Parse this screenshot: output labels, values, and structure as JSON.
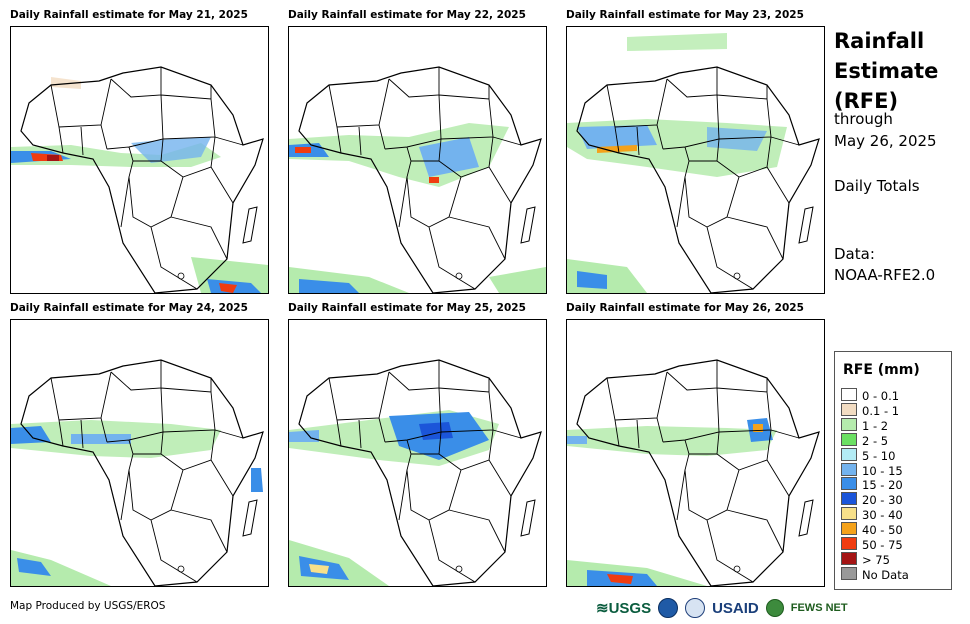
{
  "panels": [
    {
      "title": "Daily Rainfall estimate for May 21, 2025"
    },
    {
      "title": "Daily Rainfall estimate for May 22, 2025"
    },
    {
      "title": "Daily Rainfall estimate for May 23, 2025"
    },
    {
      "title": "Daily Rainfall estimate for May 24, 2025"
    },
    {
      "title": "Daily Rainfall estimate for May 25, 2025"
    },
    {
      "title": "Daily Rainfall estimate for May 26, 2025"
    }
  ],
  "sidebar": {
    "title_line1": "Rainfall",
    "title_line2": "Estimate",
    "title_line3": "(RFE)",
    "through": "through",
    "date": "May 26, 2025",
    "totals": "Daily Totals",
    "data_label": "Data:",
    "data_source": "NOAA-RFE2.0"
  },
  "legend": {
    "title": "RFE (mm)",
    "items": [
      {
        "label": "0 - 0.1",
        "color": "#ffffff"
      },
      {
        "label": "0.1 - 1",
        "color": "#f2dcc2"
      },
      {
        "label": "1 - 2",
        "color": "#b5ebad"
      },
      {
        "label": "2 - 5",
        "color": "#6be063"
      },
      {
        "label": "5 - 10",
        "color": "#b3ecf5"
      },
      {
        "label": "10 - 15",
        "color": "#73b3ee"
      },
      {
        "label": "15 - 20",
        "color": "#3a8ee8"
      },
      {
        "label": "20 - 30",
        "color": "#1b55d9"
      },
      {
        "label": "30 - 40",
        "color": "#f7e08a"
      },
      {
        "label": "40 - 50",
        "color": "#f4a21b"
      },
      {
        "label": "50 - 75",
        "color": "#f03c10"
      },
      {
        "label": "> 75",
        "color": "#a41414"
      },
      {
        "label": "No Data",
        "color": "#999999"
      }
    ]
  },
  "footer": {
    "credit": "Map Produced by USGS/EROS",
    "logo_usgs": "≋USGS",
    "logo_usaid": "USAID",
    "logo_fews": "FEWS NET"
  }
}
